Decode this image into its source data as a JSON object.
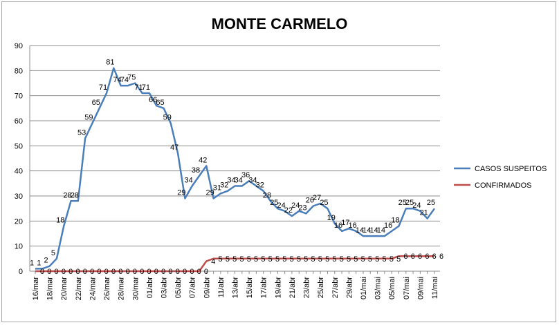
{
  "chart_data": {
    "type": "line",
    "title": "MONTE CARMELO",
    "xlabel": "",
    "ylabel": "",
    "ylim": [
      0,
      90
    ],
    "yticks": [
      0,
      10,
      20,
      30,
      40,
      50,
      60,
      70,
      80,
      90
    ],
    "grid": true,
    "legend_position": "right",
    "x": [
      "16/mar",
      "17/mar",
      "18/mar",
      "19/mar",
      "20/mar",
      "21/mar",
      "22/mar",
      "23/mar",
      "24/mar",
      "25/mar",
      "26/mar",
      "27/mar",
      "28/mar",
      "29/mar",
      "30/mar",
      "31/mar",
      "01/abr",
      "02/abr",
      "03/abr",
      "04/abr",
      "05/abr",
      "06/abr",
      "07/abr",
      "08/abr",
      "09/abr",
      "10/abr",
      "11/abr",
      "12/abr",
      "13/abr",
      "14/abr",
      "15/abr",
      "16/abr",
      "17/abr",
      "18/abr",
      "19/abr",
      "20/abr",
      "21/abr",
      "22/abr",
      "23/abr",
      "24/abr",
      "25/abr",
      "26/abr",
      "27/abr",
      "28/abr",
      "29/abr",
      "30/abr",
      "01/mai",
      "02/mai",
      "03/mai",
      "04/mai",
      "05/mai",
      "06/mai",
      "07/mai",
      "08/mai",
      "09/mai",
      "10/mai",
      "11/mai"
    ],
    "xtick_labels": [
      "16/mar",
      "18/mar",
      "20/mar",
      "22/mar",
      "24/mar",
      "26/mar",
      "28/mar",
      "30/mar",
      "01/abr",
      "03/abr",
      "05/abr",
      "07/abr",
      "09/abr",
      "11/abr",
      "13/abr",
      "15/abr",
      "17/abr",
      "19/abr",
      "21/abr",
      "23/abr",
      "25/abr",
      "27/abr",
      "29/abr",
      "01/mai",
      "03/mai",
      "05/mai",
      "07/mai",
      "09/mai",
      "11/mai"
    ],
    "series": [
      {
        "name": "CASOS SUSPEITOS",
        "color": "#4a7ebb",
        "values": [
          1,
          1,
          2,
          5,
          18,
          28,
          28,
          53,
          59,
          65,
          71,
          81,
          74,
          74,
          75,
          71,
          71,
          66,
          65,
          59,
          47,
          29,
          34,
          38,
          42,
          29,
          31,
          32,
          34,
          34,
          36,
          34,
          32,
          28,
          25,
          24,
          22,
          24,
          23,
          26,
          27,
          25,
          19,
          16,
          17,
          16,
          14,
          14,
          14,
          14,
          16,
          18,
          25,
          25,
          24,
          21,
          25
        ]
      },
      {
        "name": "CONFIRMADOS",
        "color": "#be4b48",
        "values": [
          0,
          0,
          0,
          0,
          0,
          0,
          0,
          0,
          0,
          0,
          0,
          0,
          0,
          0,
          0,
          0,
          0,
          0,
          0,
          0,
          0,
          0,
          0,
          0,
          4,
          5,
          5,
          5,
          5,
          5,
          5,
          5,
          5,
          5,
          5,
          5,
          5,
          5,
          5,
          5,
          5,
          5,
          5,
          5,
          5,
          5,
          5,
          5,
          5,
          5,
          5,
          6,
          6,
          6,
          6,
          6,
          6
        ],
        "labels": [
          "0",
          "0",
          "0",
          "0",
          "0",
          "0",
          "0",
          "0",
          "0",
          "0",
          "0",
          "0",
          "0",
          "0",
          "0",
          "0",
          "0",
          "0",
          "0",
          "0",
          "0",
          "0",
          "0",
          "0",
          "4",
          "5",
          "5",
          "5",
          "5",
          "5",
          "5",
          "5",
          "5",
          "5",
          "5",
          "5",
          "5",
          "5",
          "5",
          "5",
          "5",
          "5",
          "5",
          "5",
          "5",
          "5",
          "5",
          "5",
          "5",
          "5",
          "5",
          "6",
          "6",
          "6",
          "6",
          "6",
          "6"
        ]
      }
    ],
    "suspeitos_labels": [
      "1",
      "1",
      "2",
      "5",
      "18",
      "28",
      "28",
      "53",
      "59",
      "65",
      "71",
      "81",
      "74",
      "74",
      "75",
      "71",
      "71",
      "66",
      "65",
      "59",
      "47",
      "29",
      "34",
      "38",
      "42",
      "29",
      "31",
      "32",
      "34",
      "34",
      "36",
      "34",
      "32",
      "28",
      "25",
      "24",
      "22",
      "24",
      "23",
      "26",
      "27",
      "25",
      "19",
      "16",
      "17",
      "16",
      "14",
      "14",
      "14",
      "14",
      "16",
      "18",
      "25",
      "25",
      "24",
      "21",
      "25"
    ]
  }
}
